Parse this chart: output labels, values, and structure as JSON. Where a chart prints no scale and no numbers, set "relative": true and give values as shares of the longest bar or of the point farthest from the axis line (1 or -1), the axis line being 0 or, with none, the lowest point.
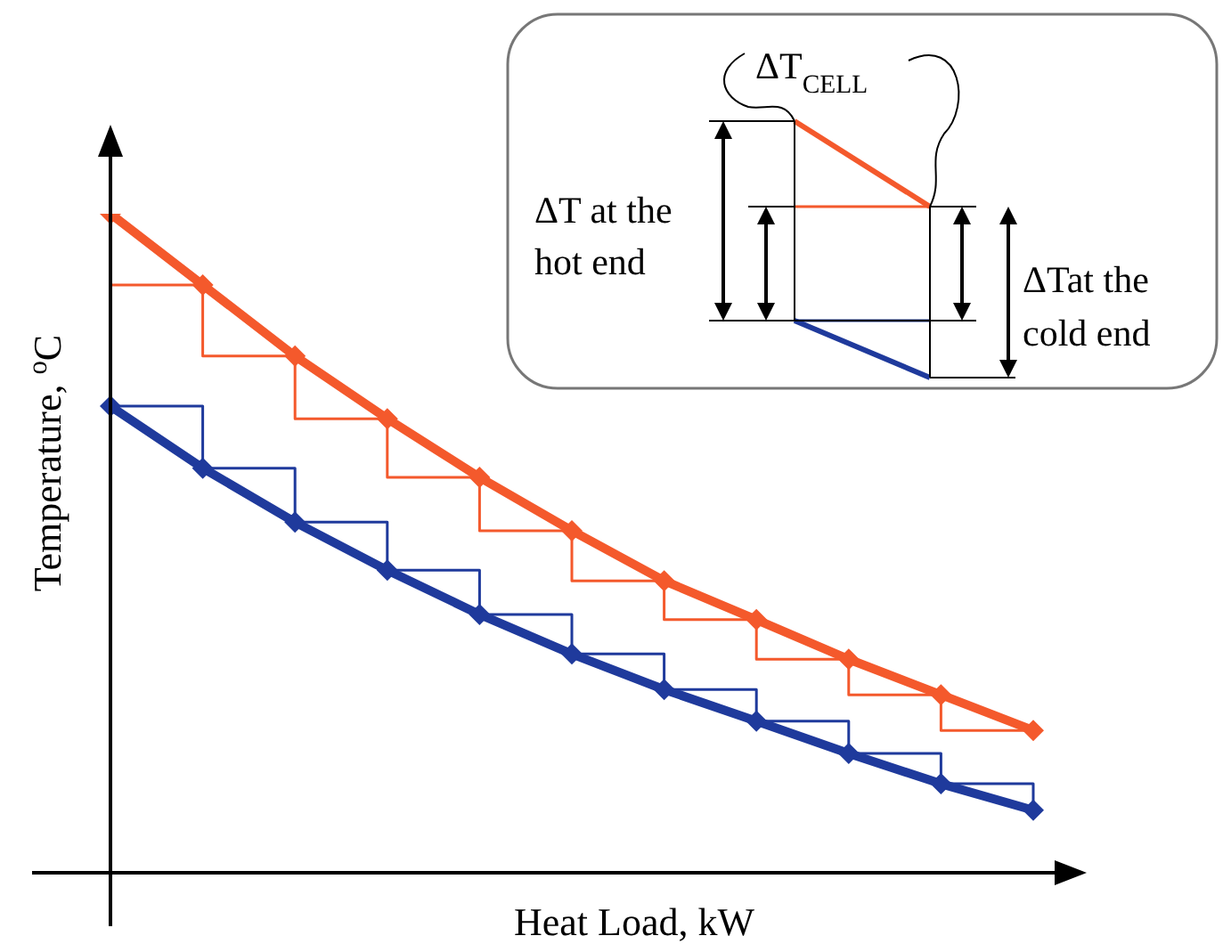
{
  "chart_data": {
    "type": "line",
    "relative": true,
    "xlabel": "Heat Load, kW",
    "ylabel": "Temperature, $^{o}$C",
    "categories": [
      null,
      null,
      null,
      null,
      null,
      null,
      null,
      null,
      null,
      null,
      null
    ],
    "marker": "diamond",
    "annotations": [
      "ΔT$_{CELL}$",
      "ΔT at the hot end",
      "ΔTat the cold end"
    ],
    "series": [
      {
        "color": "#f4592c",
        "values": [
          1,
          0.892,
          0.784,
          0.689,
          0.6,
          0.519,
          0.443,
          0.384,
          0.324,
          0.27,
          0.216
        ]
      },
      {
        "color": "#1f3a9c",
        "values": [
          0.708,
          0.614,
          0.532,
          0.459,
          0.392,
          0.332,
          0.278,
          0.23,
          0.181,
          0.135,
          0.095
        ]
      },
      {
        "type": "step",
        "marker": "none",
        "color": "#f4592c",
        "values": [
          0.892,
          0.784,
          0.689,
          0.6,
          0.519,
          0.443,
          0.384,
          0.324,
          0.27,
          0.216,
          0.216
        ]
      },
      {
        "type": "step",
        "marker": "none",
        "color": "#1f3a9c",
        "values": [
          0.708,
          0.614,
          0.532,
          0.459,
          0.392,
          0.332,
          0.278,
          0.23,
          0.181,
          0.135,
          0.095
        ]
      }
    ]
  }
}
